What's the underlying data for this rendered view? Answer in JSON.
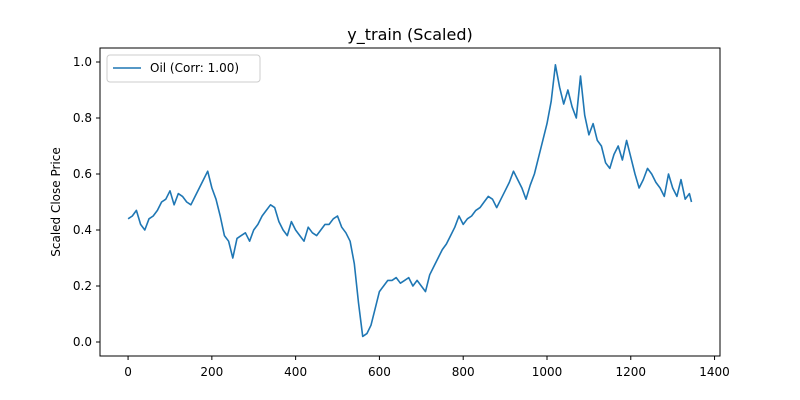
{
  "chart_data": {
    "type": "line",
    "title": "y_train (Scaled)",
    "xlabel": "",
    "ylabel": "Scaled Close Price",
    "xlim": [
      -67,
      1413
    ],
    "ylim": [
      -0.05,
      1.05
    ],
    "xticks": [
      0,
      200,
      400,
      600,
      800,
      1000,
      1200,
      1400
    ],
    "yticks": [
      0.0,
      0.2,
      0.4,
      0.6,
      0.8,
      1.0
    ],
    "ytick_labels": [
      "0.0",
      "0.2",
      "0.4",
      "0.6",
      "0.8",
      "1.0"
    ],
    "grid": false,
    "legend_position": "top-left",
    "series": [
      {
        "name": "Oil (Corr: 1.00)",
        "color": "#1f77b4",
        "x": [
          0,
          10,
          20,
          30,
          40,
          50,
          60,
          70,
          80,
          90,
          100,
          110,
          120,
          130,
          140,
          150,
          160,
          170,
          180,
          190,
          200,
          210,
          220,
          230,
          240,
          250,
          260,
          270,
          280,
          290,
          300,
          310,
          320,
          330,
          340,
          350,
          360,
          370,
          380,
          390,
          400,
          410,
          420,
          430,
          440,
          450,
          460,
          470,
          480,
          490,
          500,
          510,
          520,
          530,
          540,
          550,
          560,
          570,
          580,
          590,
          600,
          610,
          620,
          630,
          640,
          650,
          660,
          670,
          680,
          690,
          700,
          710,
          720,
          730,
          740,
          750,
          760,
          770,
          780,
          790,
          800,
          810,
          820,
          830,
          840,
          850,
          860,
          870,
          880,
          890,
          900,
          910,
          920,
          930,
          940,
          950,
          960,
          970,
          980,
          990,
          1000,
          1010,
          1020,
          1030,
          1040,
          1050,
          1060,
          1070,
          1080,
          1090,
          1100,
          1110,
          1120,
          1130,
          1140,
          1150,
          1160,
          1170,
          1180,
          1190,
          1200,
          1210,
          1220,
          1230,
          1240,
          1250,
          1260,
          1270,
          1280,
          1290,
          1300,
          1310,
          1320,
          1330,
          1340,
          1345
        ],
        "y": [
          0.44,
          0.45,
          0.47,
          0.42,
          0.4,
          0.44,
          0.45,
          0.47,
          0.5,
          0.51,
          0.54,
          0.49,
          0.53,
          0.52,
          0.5,
          0.49,
          0.52,
          0.55,
          0.58,
          0.61,
          0.55,
          0.51,
          0.45,
          0.38,
          0.36,
          0.3,
          0.37,
          0.38,
          0.39,
          0.36,
          0.4,
          0.42,
          0.45,
          0.47,
          0.49,
          0.48,
          0.43,
          0.4,
          0.38,
          0.43,
          0.4,
          0.38,
          0.36,
          0.41,
          0.39,
          0.38,
          0.4,
          0.42,
          0.42,
          0.44,
          0.45,
          0.41,
          0.39,
          0.36,
          0.28,
          0.14,
          0.02,
          0.03,
          0.06,
          0.12,
          0.18,
          0.2,
          0.22,
          0.22,
          0.23,
          0.21,
          0.22,
          0.23,
          0.2,
          0.22,
          0.2,
          0.18,
          0.24,
          0.27,
          0.3,
          0.33,
          0.35,
          0.38,
          0.41,
          0.45,
          0.42,
          0.44,
          0.45,
          0.47,
          0.48,
          0.5,
          0.52,
          0.51,
          0.48,
          0.51,
          0.54,
          0.57,
          0.61,
          0.58,
          0.55,
          0.51,
          0.56,
          0.6,
          0.66,
          0.72,
          0.78,
          0.86,
          0.99,
          0.91,
          0.85,
          0.9,
          0.84,
          0.8,
          0.95,
          0.81,
          0.74,
          0.78,
          0.72,
          0.7,
          0.64,
          0.62,
          0.67,
          0.7,
          0.65,
          0.72,
          0.66,
          0.6,
          0.55,
          0.58,
          0.62,
          0.6,
          0.57,
          0.55,
          0.52,
          0.6,
          0.55,
          0.52,
          0.58,
          0.51,
          0.53,
          0.5
        ]
      }
    ]
  }
}
